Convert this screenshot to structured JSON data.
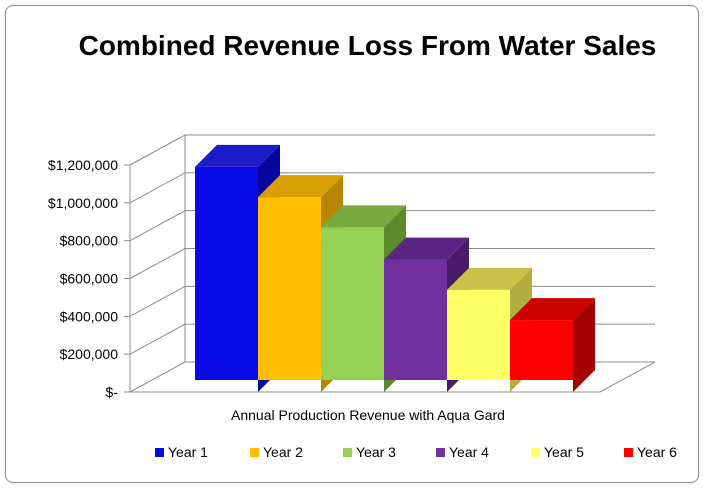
{
  "chart_data": {
    "type": "bar",
    "title": "Combined Revenue Loss From Water Sales",
    "xlabel": "Annual Production Revenue with Aqua Gard",
    "ylabel": "",
    "categories": [
      "Year 1",
      "Year 2",
      "Year 3",
      "Year 4",
      "Year 5",
      "Year 6"
    ],
    "values": [
      1190000,
      1030000,
      870000,
      700000,
      540000,
      380000
    ],
    "ylim": [
      0,
      1200000
    ],
    "yticks": [
      0,
      200000,
      400000,
      600000,
      800000,
      1000000,
      1200000
    ],
    "ytick_labels": [
      "$-",
      "$200,000",
      "$400,000",
      "$600,000",
      "$800,000",
      "$1,000,000",
      "$1,200,000"
    ],
    "grid": true,
    "legend": "bottom",
    "colors": {
      "Year 1": {
        "front": "#0a0ae6",
        "top": "#1c1cc8",
        "side": "#0707a0"
      },
      "Year 2": {
        "front": "#ffbf00",
        "top": "#d99e00",
        "side": "#b98600"
      },
      "Year 3": {
        "front": "#96d155",
        "top": "#78a83e",
        "side": "#5e8a2e"
      },
      "Year 4": {
        "front": "#7030a0",
        "top": "#5a2485",
        "side": "#481c6b"
      },
      "Year 5": {
        "front": "#ffff66",
        "top": "#c9c34a",
        "side": "#b2ad3c"
      },
      "Year 6": {
        "front": "#ff0000",
        "top": "#cc0000",
        "side": "#a50000"
      }
    }
  }
}
